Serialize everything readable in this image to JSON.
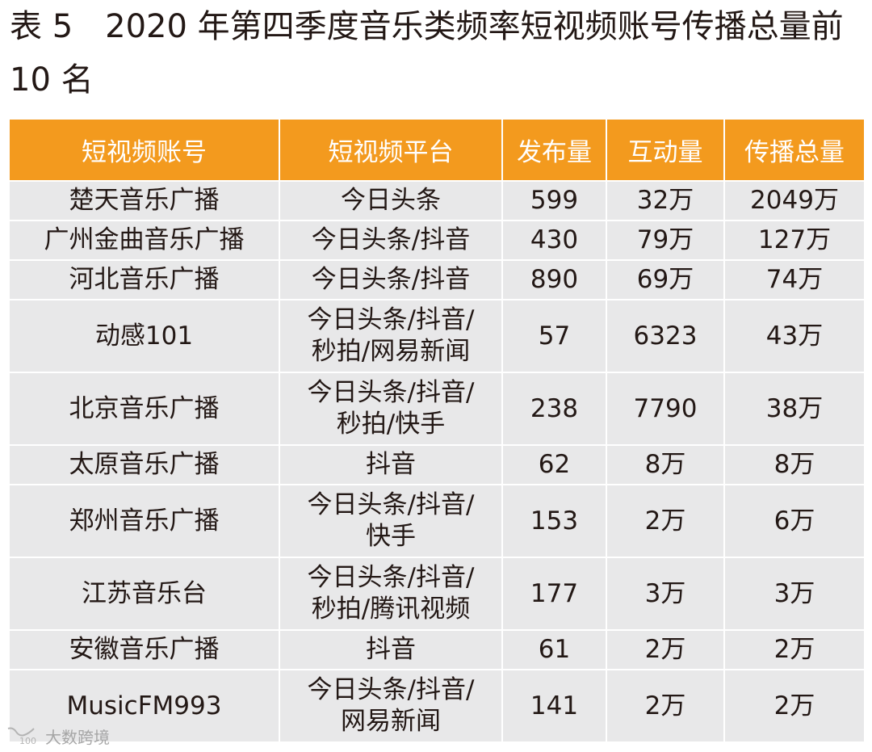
{
  "title": "表 5　2020 年第四季度音乐类频率短视频账号传播总量前 10 名",
  "table": {
    "headers": [
      "短视频账号",
      "短视频平台",
      "发布量",
      "互动量",
      "传播总量"
    ],
    "rows": [
      {
        "account": "楚天音乐广播",
        "platform": [
          "今日头条"
        ],
        "posts": "599",
        "interactions": "32万",
        "total": "2049万"
      },
      {
        "account": "广州金曲音乐广播",
        "platform": [
          "今日头条/抖音"
        ],
        "posts": "430",
        "interactions": "79万",
        "total": "127万"
      },
      {
        "account": "河北音乐广播",
        "platform": [
          "今日头条/抖音"
        ],
        "posts": "890",
        "interactions": "69万",
        "total": "74万"
      },
      {
        "account": "动感101",
        "platform": [
          "今日头条/抖音/",
          "秒拍/网易新闻"
        ],
        "posts": "57",
        "interactions": "6323",
        "total": "43万"
      },
      {
        "account": "北京音乐广播",
        "platform": [
          "今日头条/抖音/",
          "秒拍/快手"
        ],
        "posts": "238",
        "interactions": "7790",
        "total": "38万"
      },
      {
        "account": "太原音乐广播",
        "platform": [
          "抖音"
        ],
        "posts": "62",
        "interactions": "8万",
        "total": "8万"
      },
      {
        "account": "郑州音乐广播",
        "platform": [
          "今日头条/抖音/",
          "快手"
        ],
        "posts": "153",
        "interactions": "2万",
        "total": "6万"
      },
      {
        "account": "江苏音乐台",
        "platform": [
          "今日头条/抖音/",
          "秒拍/腾讯视频"
        ],
        "posts": "177",
        "interactions": "3万",
        "total": "3万"
      },
      {
        "account": "安徽音乐广播",
        "platform": [
          "抖音"
        ],
        "posts": "61",
        "interactions": "2万",
        "total": "2万"
      },
      {
        "account": "MusicFM993",
        "platform": [
          "今日头条/抖音/",
          "网易新闻"
        ],
        "posts": "141",
        "interactions": "2万",
        "total": "2万"
      }
    ]
  },
  "watermark": {
    "logo_text": "100",
    "text": "大数跨境"
  },
  "colors": {
    "header_bg": "#f39a1e",
    "header_text": "#ffffff",
    "body_bg": "#e8e8e9",
    "text": "#231815",
    "border": "#ffffff"
  }
}
